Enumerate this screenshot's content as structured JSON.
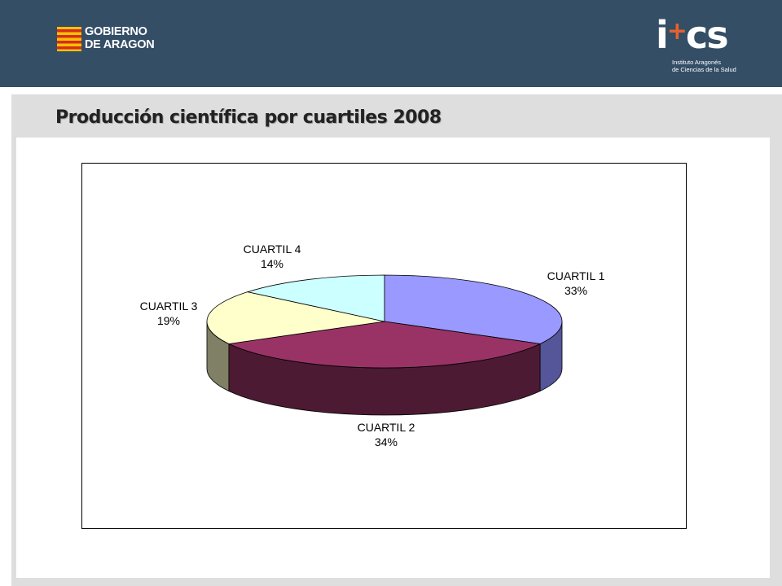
{
  "header": {
    "gov_logo_line1": "GOBIERNO",
    "gov_logo_line2": "DE ARAGON",
    "iacs_mark": "i",
    "iacs_plus": "+",
    "iacs_letters": "cs",
    "iacs_sub_line1": "Instituto Aragonés",
    "iacs_sub_line2": "de Ciencias de la Salud",
    "bg_color": "#344e66"
  },
  "slide": {
    "title": "Producción científica por cuartiles 2008"
  },
  "chart_data": {
    "type": "pie",
    "title": "Producción científica por cuartiles 2008",
    "style": "3d-exploded-none",
    "slices": [
      {
        "label": "CUARTIL 1",
        "value": 33,
        "display": "33%",
        "color": "#9999ff",
        "side": "#555599"
      },
      {
        "label": "CUARTIL 2",
        "value": 34,
        "display": "34%",
        "color": "#993366",
        "side": "#4d1a33"
      },
      {
        "label": "CUARTIL 3",
        "value": 19,
        "display": "19%",
        "color": "#ffffcc",
        "side": "#808066"
      },
      {
        "label": "CUARTIL 4",
        "value": 14,
        "display": "14%",
        "color": "#ccffff",
        "side": "#668080"
      }
    ],
    "legend": "none"
  }
}
